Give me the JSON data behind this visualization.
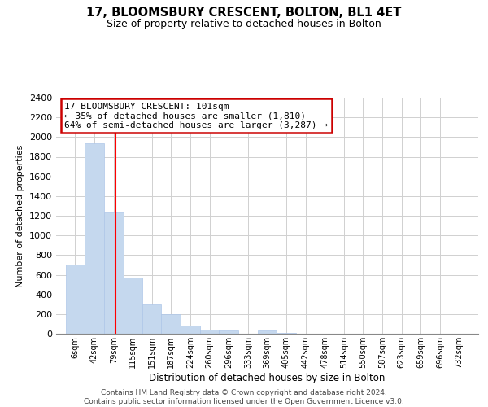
{
  "title": "17, BLOOMSBURY CRESCENT, BOLTON, BL1 4ET",
  "subtitle": "Size of property relative to detached houses in Bolton",
  "xlabel": "Distribution of detached houses by size in Bolton",
  "ylabel": "Number of detached properties",
  "bar_color": "#c5d8ee",
  "bar_edge_color": "#aec6e8",
  "grid_color": "#d0d0d0",
  "background_color": "#ffffff",
  "bin_labels": [
    "6sqm",
    "42sqm",
    "79sqm",
    "115sqm",
    "151sqm",
    "187sqm",
    "224sqm",
    "260sqm",
    "296sqm",
    "333sqm",
    "369sqm",
    "405sqm",
    "442sqm",
    "478sqm",
    "514sqm",
    "550sqm",
    "587sqm",
    "623sqm",
    "659sqm",
    "696sqm",
    "732sqm"
  ],
  "bar_heights": [
    700,
    1940,
    1230,
    575,
    300,
    200,
    80,
    45,
    35,
    0,
    30,
    10,
    0,
    0,
    0,
    0,
    0,
    0,
    0,
    0
  ],
  "ylim": [
    0,
    2400
  ],
  "yticks": [
    0,
    200,
    400,
    600,
    800,
    1000,
    1200,
    1400,
    1600,
    1800,
    2000,
    2200,
    2400
  ],
  "property_line_x": 101,
  "annotation_title": "17 BLOOMSBURY CRESCENT: 101sqm",
  "annotation_line1": "← 35% of detached houses are smaller (1,810)",
  "annotation_line2": "64% of semi-detached houses are larger (3,287) →",
  "annotation_box_color": "#ffffff",
  "annotation_box_edge_color": "#cc0000",
  "footer_line1": "Contains HM Land Registry data © Crown copyright and database right 2024.",
  "footer_line2": "Contains public sector information licensed under the Open Government Licence v3.0.",
  "bin_edges": [
    6,
    42,
    79,
    115,
    151,
    187,
    224,
    260,
    296,
    333,
    369,
    405,
    442,
    478,
    514,
    550,
    587,
    623,
    659,
    696,
    732
  ],
  "bin_width": 36
}
